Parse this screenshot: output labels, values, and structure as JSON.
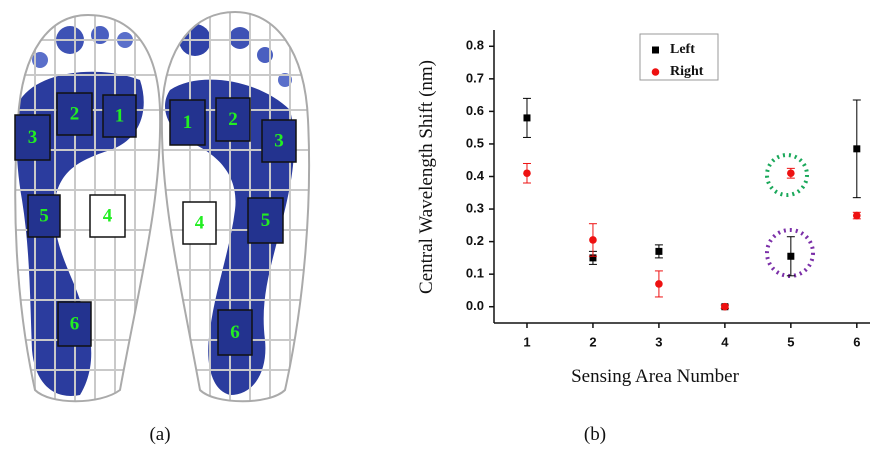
{
  "panel_a": {
    "label": "(a)",
    "left_foot": [
      "3",
      "2",
      "1",
      "5",
      "4",
      "6"
    ],
    "right_foot": [
      "1",
      "2",
      "3",
      "4",
      "5",
      "6"
    ]
  },
  "chart_data": {
    "type": "scatter",
    "panel_label": "(b)",
    "x_label": "Sensing Area Number",
    "y_label": "Central Wavelength Shift (nm)",
    "x": [
      1,
      2,
      3,
      4,
      5,
      6
    ],
    "series": [
      {
        "name": "Left",
        "color": "#000000",
        "marker": "square",
        "values": [
          0.58,
          0.15,
          0.17,
          0.0,
          0.155,
          0.485
        ],
        "errors": [
          0.06,
          0.02,
          0.02,
          0.005,
          0.06,
          0.15
        ]
      },
      {
        "name": "Right",
        "color": "#ee1111",
        "marker": "circle",
        "values": [
          0.41,
          0.205,
          0.07,
          0.0,
          0.41,
          0.28
        ],
        "errors": [
          0.03,
          0.05,
          0.04,
          0.005,
          0.015,
          0.01
        ]
      }
    ],
    "xlim": [
      0.5,
      6.2
    ],
    "ylim": [
      -0.05,
      0.85
    ],
    "xticks": [
      1,
      2,
      3,
      4,
      5,
      6
    ],
    "yticks": [
      {
        "value": 0,
        "label": "0.0"
      },
      0.1,
      0.2,
      0.3,
      0.4,
      0.5,
      0.6,
      0.7,
      0.8
    ],
    "grid": false,
    "legend": "top-center"
  }
}
